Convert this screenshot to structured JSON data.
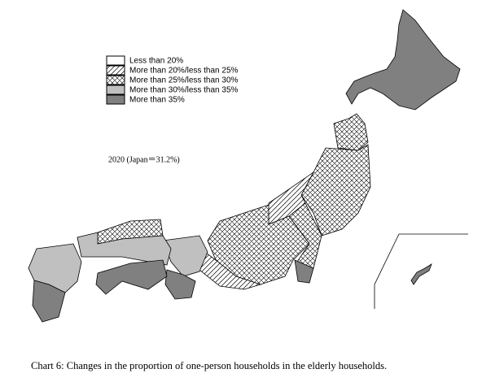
{
  "legend": {
    "items": [
      "Less than 20%",
      "More than 20%/less than 25%",
      "More than 25%/less than 30%",
      "More than 30%/less than 35%",
      "More than 35%"
    ]
  },
  "annotation": "2020 (Japan＝31.2%)",
  "caption": "Chart 6: Changes in the proportion of one-person households in the elderly households."
}
